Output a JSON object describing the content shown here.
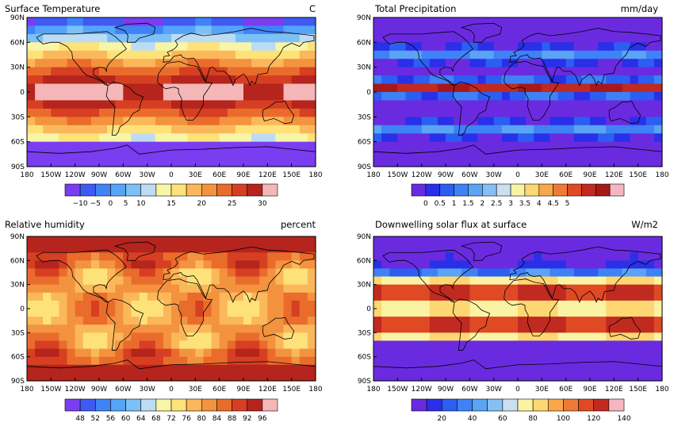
{
  "lat_labels": [
    "90N",
    "60N",
    "30N",
    "0",
    "30S",
    "60S",
    "90S"
  ],
  "lon_labels": [
    "180",
    "150W",
    "120W",
    "90W",
    "60W",
    "30W",
    "0",
    "30E",
    "60E",
    "90E",
    "120E",
    "150E",
    "180"
  ],
  "panels": [
    {
      "id": "surface-temperature",
      "title": "Surface Temperature",
      "units": "C",
      "palette": [
        "#7a3df0",
        "#3f5af2",
        "#3f83f7",
        "#55a4f7",
        "#7dc0f5",
        "#bcdcf3",
        "#f9f5a6",
        "#fde27a",
        "#fbb85a",
        "#f3933f",
        "#ea6c2c",
        "#d73f22",
        "#b5241d",
        "#f4b6b6"
      ],
      "tick_labels": [
        "−10",
        "−5",
        "0",
        "5",
        "10",
        "15",
        "20",
        "25",
        "30"
      ],
      "tick_positions": [
        1,
        2,
        3,
        4,
        5,
        7,
        9,
        11,
        13
      ],
      "description_of_field": "warm tropical band, cold poles"
    },
    {
      "id": "total-precipitation",
      "title": "Total Precipitation",
      "units": "mm/day",
      "palette": [
        "#6a2be0",
        "#2a2fe8",
        "#2c5ef2",
        "#3f82f5",
        "#5aa3f5",
        "#86c0f3",
        "#c9e0f1",
        "#faf3a4",
        "#fdd771",
        "#f8a84b",
        "#ef7a35",
        "#df4a25",
        "#c12a20",
        "#a8181b",
        "#f4b6c0"
      ],
      "tick_labels": [
        "0",
        "0.5",
        "1",
        "1.5",
        "2",
        "2.5",
        "3",
        "3.5",
        "4",
        "4.5",
        "5"
      ],
      "tick_positions": [
        1,
        2,
        3,
        4,
        5,
        6,
        7,
        8,
        9,
        10,
        11
      ],
      "description_of_field": "ITCZ wet band"
    },
    {
      "id": "relative-humidity",
      "title": "Relative humidity",
      "units": "percent",
      "palette": [
        "#7a3df0",
        "#3f5af2",
        "#3f83f7",
        "#55a4f7",
        "#7dc0f5",
        "#bcdcf3",
        "#f9f5a6",
        "#fde27a",
        "#fbb85a",
        "#f3933f",
        "#ea6c2c",
        "#d73f22",
        "#b5241d",
        "#f4b6b6"
      ],
      "tick_labels": [
        "48",
        "52",
        "56",
        "60",
        "64",
        "68",
        "72",
        "76",
        "80",
        "84",
        "88",
        "92",
        "96"
      ],
      "tick_positions": [
        1,
        2,
        3,
        4,
        5,
        6,
        7,
        8,
        9,
        10,
        11,
        12,
        13
      ],
      "description_of_field": "humid oceans"
    },
    {
      "id": "downwelling-solar-flux",
      "title": "Downwelling solar flux at surface",
      "units": "W/m2",
      "palette": [
        "#6a2be0",
        "#2a2fe8",
        "#2c5ef2",
        "#3f82f5",
        "#5aa3f5",
        "#86c0f3",
        "#c9e0f1",
        "#faf3a4",
        "#fdd771",
        "#f8a84b",
        "#ef7a35",
        "#df4a25",
        "#c12a20",
        "#f4b6c0"
      ],
      "tick_labels": [
        "20",
        "40",
        "60",
        "80",
        "100",
        "120",
        "140"
      ],
      "tick_positions": [
        2,
        4,
        6,
        8,
        10,
        12,
        14
      ],
      "description_of_field": "high flux subtropics"
    }
  ]
}
